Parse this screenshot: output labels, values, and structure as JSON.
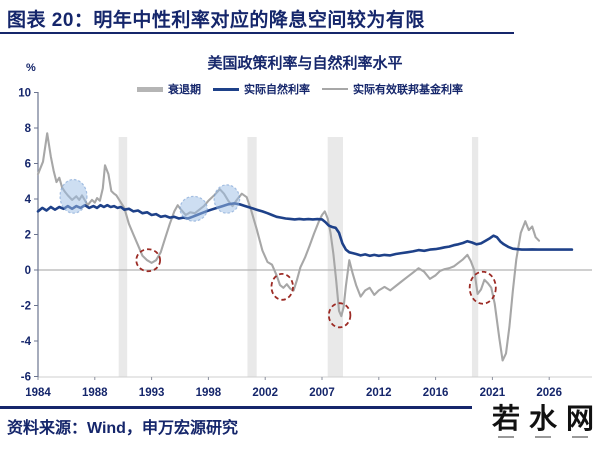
{
  "page": {
    "title": "图表 20：明年中性利率对应的降息空间较为有限",
    "source": "资料来源：Wind，申万宏源研究",
    "watermark_chars": [
      "若",
      "水",
      "网"
    ],
    "accent_color": "#15266b"
  },
  "chart_data": {
    "type": "line",
    "title": "美国政策利率与自然利率水平",
    "unit_label": "%",
    "ylabel": "%",
    "ylim": [
      -6,
      10
    ],
    "y_ticks": [
      10,
      8,
      6,
      4,
      2,
      0,
      -2,
      -4,
      -6
    ],
    "x_tick_years": [
      1984,
      1988,
      1993,
      1998,
      2002,
      2007,
      2012,
      2016,
      2021,
      2026
    ],
    "grid": "zero-line-only",
    "legend_position": "top-center",
    "legend": [
      {
        "label": "衰退期",
        "swatch": "band",
        "color": "#b5b5b5"
      },
      {
        "label": "实际自然利率",
        "swatch": "line",
        "color": "#1e4189"
      },
      {
        "label": "实际有效联邦基金利率",
        "swatch": "line",
        "color": "#a7a7a7"
      }
    ],
    "recession_bands": [
      [
        1990.1,
        1990.85
      ],
      [
        2000.75,
        2001.4
      ],
      [
        2007.5,
        2008.85
      ],
      [
        2019.2,
        2019.75
      ]
    ],
    "series": [
      {
        "name": "实际有效联邦基金利率",
        "color": "#a7a7a7",
        "width": 2.1,
        "points": [
          [
            1984.0,
            5.4
          ],
          [
            1984.35,
            6.1
          ],
          [
            1984.65,
            7.7
          ],
          [
            1984.9,
            6.4
          ],
          [
            1985.1,
            5.6
          ],
          [
            1985.3,
            4.95
          ],
          [
            1985.5,
            5.2
          ],
          [
            1985.7,
            4.65
          ],
          [
            1985.9,
            4.4
          ],
          [
            1986.1,
            4.2
          ],
          [
            1986.4,
            3.95
          ],
          [
            1986.7,
            4.15
          ],
          [
            1986.9,
            3.95
          ],
          [
            1987.1,
            4.2
          ],
          [
            1987.5,
            3.65
          ],
          [
            1987.8,
            3.95
          ],
          [
            1988.0,
            3.8
          ],
          [
            1988.2,
            4.05
          ],
          [
            1988.45,
            3.9
          ],
          [
            1988.7,
            4.6
          ],
          [
            1988.9,
            5.9
          ],
          [
            1989.2,
            5.4
          ],
          [
            1989.45,
            4.45
          ],
          [
            1989.7,
            4.3
          ],
          [
            1989.9,
            4.2
          ],
          [
            1990.2,
            3.9
          ],
          [
            1990.6,
            3.5
          ],
          [
            1991.0,
            2.6
          ],
          [
            1991.4,
            2.0
          ],
          [
            1991.8,
            1.4
          ],
          [
            1992.2,
            0.8
          ],
          [
            1992.6,
            0.55
          ],
          [
            1993.0,
            0.4
          ],
          [
            1993.4,
            0.55
          ],
          [
            1993.8,
            1.0
          ],
          [
            1994.2,
            1.8
          ],
          [
            1994.6,
            2.6
          ],
          [
            1995.0,
            3.3
          ],
          [
            1995.3,
            3.65
          ],
          [
            1995.6,
            3.4
          ],
          [
            1996.0,
            3.1
          ],
          [
            1996.4,
            3.25
          ],
          [
            1996.8,
            3.2
          ],
          [
            1997.2,
            3.4
          ],
          [
            1997.6,
            3.6
          ],
          [
            1998.0,
            3.9
          ],
          [
            1998.4,
            4.2
          ],
          [
            1998.8,
            4.55
          ],
          [
            1999.1,
            4.3
          ],
          [
            1999.4,
            3.9
          ],
          [
            1999.7,
            3.6
          ],
          [
            2000.0,
            3.95
          ],
          [
            2000.35,
            4.3
          ],
          [
            2000.7,
            4.1
          ],
          [
            2001.0,
            3.4
          ],
          [
            2001.4,
            2.3
          ],
          [
            2001.8,
            1.1
          ],
          [
            2002.2,
            0.45
          ],
          [
            2002.6,
            0.3
          ],
          [
            2003.0,
            -0.3
          ],
          [
            2003.3,
            -0.85
          ],
          [
            2003.6,
            -1.0
          ],
          [
            2003.9,
            -0.8
          ],
          [
            2004.2,
            -1.05
          ],
          [
            2004.5,
            -1.15
          ],
          [
            2004.8,
            -0.55
          ],
          [
            2005.1,
            0.15
          ],
          [
            2005.5,
            0.7
          ],
          [
            2005.9,
            1.35
          ],
          [
            2006.3,
            2.05
          ],
          [
            2006.7,
            2.7
          ],
          [
            2007.0,
            3.1
          ],
          [
            2007.25,
            3.3
          ],
          [
            2007.5,
            2.9
          ],
          [
            2007.75,
            2.1
          ],
          [
            2008.0,
            0.9
          ],
          [
            2008.25,
            -0.6
          ],
          [
            2008.5,
            -2.3
          ],
          [
            2008.7,
            -2.6
          ],
          [
            2008.9,
            -2.1
          ],
          [
            2009.1,
            -0.9
          ],
          [
            2009.4,
            0.55
          ],
          [
            2009.7,
            -0.2
          ],
          [
            2010.0,
            -0.85
          ],
          [
            2010.4,
            -1.5
          ],
          [
            2010.8,
            -1.15
          ],
          [
            2011.2,
            -1.0
          ],
          [
            2011.6,
            -1.4
          ],
          [
            2012.0,
            -1.15
          ],
          [
            2012.4,
            -0.95
          ],
          [
            2012.8,
            -1.15
          ],
          [
            2013.2,
            -0.9
          ],
          [
            2013.6,
            -0.65
          ],
          [
            2014.0,
            -0.4
          ],
          [
            2014.4,
            -0.15
          ],
          [
            2014.8,
            0.1
          ],
          [
            2015.2,
            -0.1
          ],
          [
            2015.6,
            -0.5
          ],
          [
            2016.0,
            -0.3
          ],
          [
            2016.4,
            -0.05
          ],
          [
            2016.8,
            0.05
          ],
          [
            2017.2,
            0.1
          ],
          [
            2017.6,
            0.2
          ],
          [
            2018.0,
            0.4
          ],
          [
            2018.4,
            0.6
          ],
          [
            2018.8,
            0.85
          ],
          [
            2019.1,
            0.5
          ],
          [
            2019.4,
            0.0
          ],
          [
            2019.7,
            -1.35
          ],
          [
            2020.0,
            -1.1
          ],
          [
            2020.3,
            -0.55
          ],
          [
            2020.6,
            -0.75
          ],
          [
            2020.9,
            -1.0
          ],
          [
            2021.2,
            -1.9
          ],
          [
            2021.6,
            -3.8
          ],
          [
            2021.9,
            -5.1
          ],
          [
            2022.2,
            -4.7
          ],
          [
            2022.5,
            -3.2
          ],
          [
            2022.8,
            -1.2
          ],
          [
            2023.1,
            0.6
          ],
          [
            2023.5,
            2.1
          ],
          [
            2023.9,
            2.75
          ],
          [
            2024.2,
            2.25
          ],
          [
            2024.5,
            2.45
          ],
          [
            2024.8,
            1.85
          ],
          [
            2025.1,
            1.65
          ]
        ]
      },
      {
        "name": "实际自然利率",
        "color": "#1e4189",
        "width": 2.6,
        "points": [
          [
            1984.0,
            3.3
          ],
          [
            1984.3,
            3.5
          ],
          [
            1984.6,
            3.35
          ],
          [
            1984.9,
            3.55
          ],
          [
            1985.2,
            3.4
          ],
          [
            1985.5,
            3.55
          ],
          [
            1985.8,
            3.45
          ],
          [
            1986.1,
            3.6
          ],
          [
            1986.4,
            3.45
          ],
          [
            1986.7,
            3.6
          ],
          [
            1987.0,
            3.5
          ],
          [
            1987.3,
            3.65
          ],
          [
            1987.6,
            3.5
          ],
          [
            1987.9,
            3.6
          ],
          [
            1988.2,
            3.5
          ],
          [
            1988.5,
            3.65
          ],
          [
            1988.8,
            3.55
          ],
          [
            1989.1,
            3.65
          ],
          [
            1989.4,
            3.55
          ],
          [
            1989.7,
            3.6
          ],
          [
            1990.0,
            3.5
          ],
          [
            1990.3,
            3.55
          ],
          [
            1990.6,
            3.4
          ],
          [
            1991.0,
            3.45
          ],
          [
            1991.4,
            3.3
          ],
          [
            1991.8,
            3.35
          ],
          [
            1992.2,
            3.2
          ],
          [
            1992.6,
            3.25
          ],
          [
            1993.0,
            3.1
          ],
          [
            1993.4,
            3.15
          ],
          [
            1993.8,
            3.0
          ],
          [
            1994.2,
            3.05
          ],
          [
            1994.6,
            2.95
          ],
          [
            1995.0,
            3.0
          ],
          [
            1995.4,
            2.9
          ],
          [
            1995.8,
            2.95
          ],
          [
            1996.2,
            2.9
          ],
          [
            1996.6,
            3.0
          ],
          [
            1997.0,
            3.1
          ],
          [
            1997.4,
            3.2
          ],
          [
            1997.8,
            3.3
          ],
          [
            1998.2,
            3.4
          ],
          [
            1998.6,
            3.5
          ],
          [
            1999.0,
            3.6
          ],
          [
            1999.4,
            3.7
          ],
          [
            1999.8,
            3.75
          ],
          [
            2000.2,
            3.7
          ],
          [
            2000.6,
            3.6
          ],
          [
            2001.0,
            3.5
          ],
          [
            2001.4,
            3.4
          ],
          [
            2001.8,
            3.3
          ],
          [
            2002.2,
            3.2
          ],
          [
            2002.6,
            3.1
          ],
          [
            2003.0,
            3.0
          ],
          [
            2003.4,
            2.95
          ],
          [
            2003.8,
            2.9
          ],
          [
            2004.2,
            2.88
          ],
          [
            2004.6,
            2.85
          ],
          [
            2005.0,
            2.88
          ],
          [
            2005.4,
            2.85
          ],
          [
            2005.8,
            2.87
          ],
          [
            2006.2,
            2.85
          ],
          [
            2006.6,
            2.87
          ],
          [
            2007.0,
            2.85
          ],
          [
            2007.3,
            2.7
          ],
          [
            2007.6,
            2.5
          ],
          [
            2007.9,
            2.42
          ],
          [
            2008.2,
            2.38
          ],
          [
            2008.5,
            2.1
          ],
          [
            2008.8,
            1.5
          ],
          [
            2009.1,
            1.15
          ],
          [
            2009.4,
            1.0
          ],
          [
            2009.7,
            0.95
          ],
          [
            2010.0,
            0.9
          ],
          [
            2010.4,
            0.82
          ],
          [
            2010.8,
            0.88
          ],
          [
            2011.2,
            0.8
          ],
          [
            2011.6,
            0.85
          ],
          [
            2012.0,
            0.8
          ],
          [
            2012.4,
            0.85
          ],
          [
            2012.8,
            0.82
          ],
          [
            2013.2,
            0.9
          ],
          [
            2013.6,
            0.95
          ],
          [
            2014.0,
            1.0
          ],
          [
            2014.4,
            1.05
          ],
          [
            2014.8,
            1.12
          ],
          [
            2015.2,
            1.08
          ],
          [
            2015.6,
            1.15
          ],
          [
            2016.0,
            1.18
          ],
          [
            2016.4,
            1.22
          ],
          [
            2016.8,
            1.28
          ],
          [
            2017.2,
            1.32
          ],
          [
            2017.6,
            1.4
          ],
          [
            2018.0,
            1.45
          ],
          [
            2018.4,
            1.52
          ],
          [
            2018.8,
            1.62
          ],
          [
            2019.2,
            1.55
          ],
          [
            2019.6,
            1.45
          ],
          [
            2020.0,
            1.5
          ],
          [
            2020.4,
            1.65
          ],
          [
            2020.8,
            1.8
          ],
          [
            2021.1,
            1.93
          ],
          [
            2021.4,
            1.85
          ],
          [
            2021.7,
            1.6
          ],
          [
            2022.0,
            1.45
          ],
          [
            2022.4,
            1.3
          ],
          [
            2022.8,
            1.2
          ],
          [
            2023.2,
            1.17
          ],
          [
            2023.6,
            1.15
          ],
          [
            2024.0,
            1.15
          ],
          [
            2024.5,
            1.16
          ],
          [
            2025.0,
            1.15
          ],
          [
            2025.5,
            1.15
          ],
          [
            2026.0,
            1.15
          ],
          [
            2026.5,
            1.15
          ],
          [
            2027.0,
            1.15
          ],
          [
            2027.6,
            1.15
          ],
          [
            2028.0,
            1.15
          ]
        ]
      }
    ],
    "highlight_ellipses": {
      "color": "#9bbee6",
      "items": [
        {
          "year": 1986.5,
          "value": 4.15,
          "rx_years": 0.95,
          "ry_units": 0.95
        },
        {
          "year": 1996.7,
          "value": 3.45,
          "rx_years": 1.2,
          "ry_units": 0.7
        },
        {
          "year": 1999.3,
          "value": 4.0,
          "rx_years": 0.9,
          "ry_units": 0.8
        }
      ]
    },
    "red_circles": {
      "color": "#9c2b25",
      "items": [
        {
          "year": 1992.7,
          "value": 0.55,
          "rx_years": 1.05,
          "ry_units": 0.62
        },
        {
          "year": 2003.5,
          "value": -0.95,
          "rx_years": 0.95,
          "ry_units": 0.73
        },
        {
          "year": 2008.55,
          "value": -2.55,
          "rx_years": 0.95,
          "ry_units": 0.68
        },
        {
          "year": 2020.15,
          "value": -1.0,
          "rx_years": 1.15,
          "ry_units": 0.9
        }
      ]
    }
  }
}
